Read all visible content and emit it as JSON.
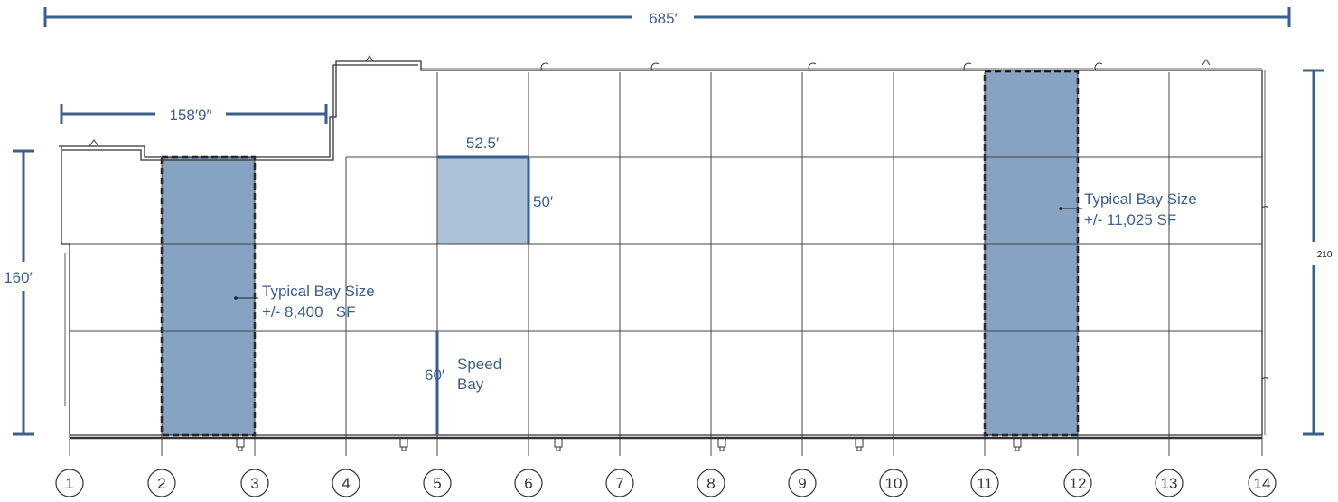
{
  "dimensions": {
    "overall_width": "685′",
    "office_width": "158′9″",
    "left_depth": "160′",
    "right_depth": "210′",
    "bay_width": "52.5′",
    "bay_depth": "50′",
    "speed_bay_depth": "60′",
    "speed_bay_label_line1": "Speed",
    "speed_bay_label_line2": "Bay"
  },
  "callouts": {
    "left_bay": {
      "line1": "Typical Bay Size",
      "line2": "+/- 8,400   SF"
    },
    "right_bay": {
      "line1": "Typical Bay Size",
      "line2": "+/- 11,025 SF"
    }
  },
  "columns": [
    "1",
    "2",
    "3",
    "4",
    "5",
    "6",
    "7",
    "8",
    "9",
    "10",
    "11",
    "12",
    "13",
    "14"
  ],
  "colors": {
    "dimension": "#3a5f8c",
    "bay_fill": "#86a3c3",
    "bay_light_fill": "#adc2d9",
    "wall": "#333333",
    "grid": "#444444"
  }
}
